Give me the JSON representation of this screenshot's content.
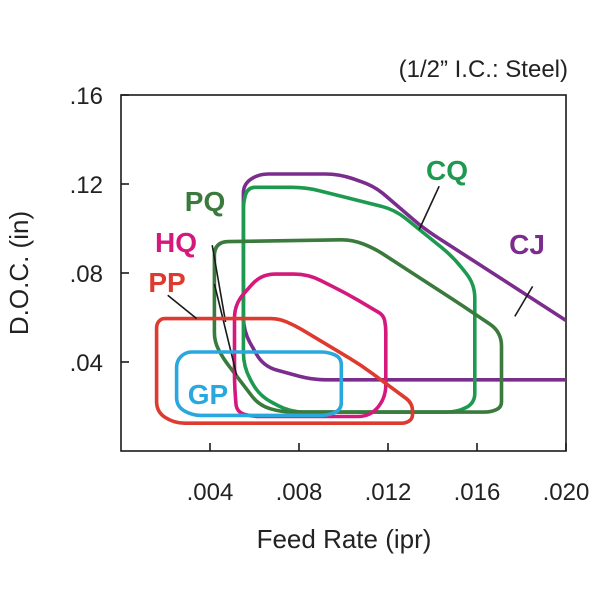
{
  "chart_data": {
    "type": "area",
    "note": "(1/2” I.C.: Steel)",
    "xlabel": "Feed Rate (ipr)",
    "ylabel": "D.O.C. (in)",
    "xlim": [
      0,
      0.02
    ],
    "ylim": [
      0,
      0.16
    ],
    "x_ticks": [
      {
        "value": 0.004,
        "label": ".004"
      },
      {
        "value": 0.008,
        "label": ".008"
      },
      {
        "value": 0.012,
        "label": ".012"
      },
      {
        "value": 0.016,
        "label": ".016"
      },
      {
        "value": 0.02,
        "label": ".020"
      }
    ],
    "y_ticks": [
      {
        "value": 0.04,
        "label": ".04"
      },
      {
        "value": 0.08,
        "label": ".08"
      },
      {
        "value": 0.12,
        "label": ".12"
      },
      {
        "value": 0.16,
        "label": ".16"
      }
    ],
    "grid": false,
    "series": [
      {
        "name": "CJ",
        "color": "#7b2d8e",
        "open": true,
        "points": [
          [
            0.0208,
            0.032
          ],
          [
            0.0116,
            0.032
          ],
          [
            0.0086,
            0.032
          ],
          [
            0.0064,
            0.038
          ],
          [
            0.0055,
            0.054
          ],
          [
            0.0055,
            0.12
          ],
          [
            0.0062,
            0.1245
          ],
          [
            0.0098,
            0.1245
          ],
          [
            0.0114,
            0.119
          ],
          [
            0.0136,
            0.1
          ],
          [
            0.0208,
            0.0535
          ]
        ],
        "leader": [
          [
            0.0177,
            0.0605
          ],
          [
            0.0185,
            0.074
          ]
        ]
      },
      {
        "name": "CQ",
        "color": "#1d9a50",
        "open": false,
        "points": [
          [
            0.0057,
            0.1185
          ],
          [
            0.0083,
            0.1185
          ],
          [
            0.0123,
            0.1085
          ],
          [
            0.0149,
            0.0875
          ],
          [
            0.0159,
            0.075
          ],
          [
            0.0159,
            0.0215
          ],
          [
            0.0151,
            0.0175
          ],
          [
            0.0076,
            0.0175
          ],
          [
            0.0062,
            0.025
          ],
          [
            0.0055,
            0.038
          ],
          [
            0.0055,
            0.112
          ]
        ],
        "leader": [
          [
            0.0134,
            0.0995
          ],
          [
            0.0143,
            0.119
          ]
        ]
      },
      {
        "name": "PQ",
        "color": "#3a7a3c",
        "open": false,
        "points": [
          [
            0.0042,
            0.094
          ],
          [
            0.0104,
            0.095
          ],
          [
            0.0114,
            0.091
          ],
          [
            0.0154,
            0.065
          ],
          [
            0.0171,
            0.0535
          ],
          [
            0.0171,
            0.0195
          ],
          [
            0.0166,
            0.0175
          ],
          [
            0.0072,
            0.0175
          ],
          [
            0.0062,
            0.0205
          ],
          [
            0.0046,
            0.0415
          ],
          [
            0.0042,
            0.049
          ]
        ],
        "leader": [
          [
            0.0047,
            0.058
          ],
          [
            0.0041,
            0.0925
          ]
        ]
      },
      {
        "name": "HQ",
        "color": "#d4187c",
        "open": false,
        "points": [
          [
            0.0063,
            0.0795
          ],
          [
            0.0084,
            0.0795
          ],
          [
            0.0101,
            0.071
          ],
          [
            0.0118,
            0.061
          ],
          [
            0.0119,
            0.056
          ],
          [
            0.0119,
            0.024
          ],
          [
            0.0112,
            0.0155
          ],
          [
            0.0059,
            0.0155
          ],
          [
            0.0052,
            0.0175
          ],
          [
            0.0051,
            0.029
          ],
          [
            0.0051,
            0.066
          ]
        ],
        "leader": [
          [
            0.0052,
            0.034
          ],
          [
            0.0042,
            0.075
          ]
        ]
      },
      {
        "name": "PP",
        "color": "#dd3a30",
        "open": false,
        "points": [
          [
            0.0018,
            0.0595
          ],
          [
            0.0071,
            0.0595
          ],
          [
            0.0078,
            0.0565
          ],
          [
            0.0108,
            0.0385
          ],
          [
            0.0131,
            0.0215
          ],
          [
            0.0131,
            0.0145
          ],
          [
            0.0128,
            0.0125
          ],
          [
            0.0024,
            0.0125
          ],
          [
            0.0016,
            0.0175
          ],
          [
            0.0016,
            0.057
          ]
        ],
        "leader": [
          [
            0.0034,
            0.0595
          ],
          [
            0.0021,
            0.07
          ]
        ]
      },
      {
        "name": "GP",
        "color": "#28a8df",
        "open": false,
        "points": [
          [
            0.0029,
            0.0445
          ],
          [
            0.0093,
            0.0445
          ],
          [
            0.0099,
            0.042
          ],
          [
            0.0099,
            0.0185
          ],
          [
            0.0093,
            0.016
          ],
          [
            0.0032,
            0.016
          ],
          [
            0.0025,
            0.02
          ],
          [
            0.0025,
            0.0405
          ]
        ],
        "leader": []
      }
    ]
  }
}
